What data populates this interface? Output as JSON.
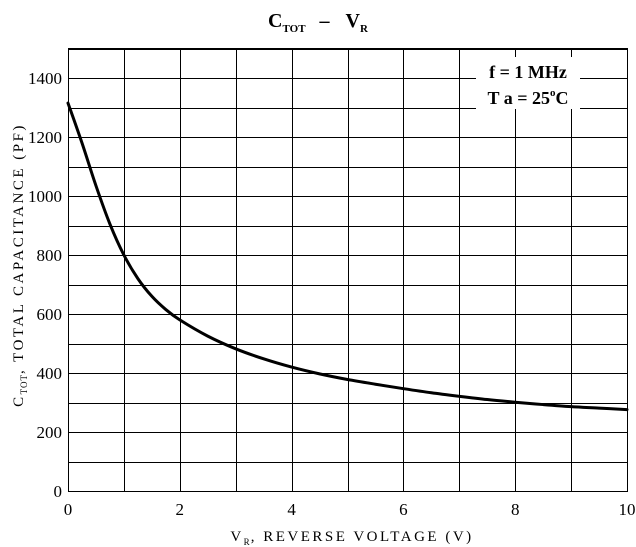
{
  "chart_data": {
    "type": "line",
    "title": {
      "main_prefix": "C",
      "main_sub": "TOT",
      "dash": "–",
      "main_suffix": "V",
      "suffix_sub": "R"
    },
    "xlabel": {
      "prefix": "V",
      "sub": "R",
      "text": ", REVERSE VOLTAGE (V)"
    },
    "ylabel": {
      "prefix": "C",
      "sub": "TOT",
      "text": ",  TOTAL  CAPACITANCE (PF)"
    },
    "xlim": [
      0,
      10
    ],
    "ylim": [
      0,
      1400
    ],
    "x_ticks": [
      0,
      2,
      4,
      6,
      8,
      10
    ],
    "y_ticks": [
      0,
      200,
      400,
      600,
      800,
      1000,
      1200,
      1400
    ],
    "x_grid": [
      0,
      1,
      2,
      3,
      4,
      5,
      6,
      7,
      8,
      9,
      10
    ],
    "y_grid": [
      0,
      100,
      200,
      300,
      400,
      500,
      600,
      700,
      800,
      900,
      1000,
      1100,
      1200,
      1300,
      1400,
      1500
    ],
    "grid": true,
    "annotation": {
      "line1": "f = 1 MHz",
      "line2_prefix": "T a = 25",
      "line2_sup": "o",
      "line2_suffix": "C",
      "placement": "top-right"
    },
    "series": [
      {
        "color": "#000000",
        "x": [
          0,
          0.25,
          0.5,
          0.75,
          1.0,
          1.25,
          1.5,
          1.75,
          2.0,
          2.5,
          3.0,
          3.5,
          4.0,
          4.5,
          5.0,
          5.5,
          6.0,
          6.5,
          7.0,
          7.5,
          8.0,
          8.5,
          9.0,
          9.5,
          10.0
        ],
        "y": [
          1315,
          1180,
          1035,
          905,
          800,
          720,
          660,
          615,
          580,
          525,
          482,
          448,
          420,
          397,
          378,
          362,
          347,
          333,
          321,
          310,
          301,
          293,
          286,
          281,
          276
        ]
      }
    ]
  }
}
